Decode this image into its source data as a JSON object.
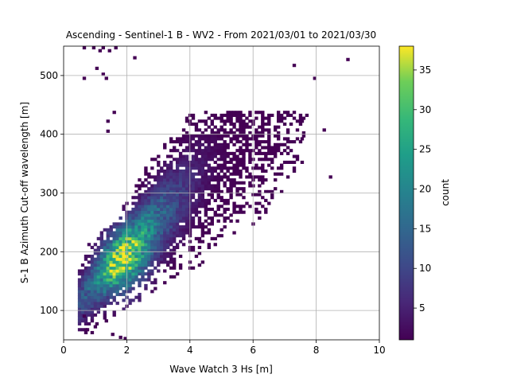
{
  "chart_data": {
    "type": "heatmap",
    "title": "Ascending - Sentinel-1 B - WV2 - From 2021/03/01 to 2021/03/30",
    "xlabel": "Wave Watch 3 Hs [m]",
    "ylabel": "S-1 B Azimuth Cut-off wavelength [m]",
    "xlim": [
      0,
      10
    ],
    "ylim": [
      50,
      550
    ],
    "xticks": [
      0,
      2,
      4,
      6,
      8,
      10
    ],
    "yticks": [
      100,
      200,
      300,
      400,
      500
    ],
    "grid": true,
    "colorbar": {
      "label": "count",
      "colormap": "viridis",
      "range": [
        1,
        38
      ],
      "ticks": [
        5,
        10,
        15,
        20,
        25,
        30,
        35
      ]
    },
    "distribution": {
      "description_of_cloud": "2D histogram of counts; dense core near Hs 1.9 m and cutoff 190 m, elongated along roughly 200 + 55*(Hs-2) m",
      "core_center": [
        1.9,
        185
      ],
      "peak_count": 38,
      "outliers": [
        [
          0.6,
          545
        ],
        [
          0.9,
          545
        ],
        [
          1.1,
          540
        ],
        [
          1.2,
          545
        ],
        [
          1.4,
          540
        ],
        [
          1.6,
          545
        ],
        [
          0.6,
          493
        ],
        [
          1.0,
          510
        ],
        [
          1.2,
          500
        ],
        [
          1.3,
          493
        ],
        [
          2.2,
          528
        ],
        [
          1.55,
          435
        ],
        [
          1.35,
          420
        ],
        [
          1.35,
          403
        ],
        [
          8.95,
          525
        ],
        [
          7.25,
          515
        ],
        [
          7.9,
          493
        ],
        [
          0.7,
          65
        ],
        [
          1.0,
          75
        ],
        [
          1.3,
          80
        ],
        [
          1.5,
          57
        ],
        [
          1.75,
          52
        ],
        [
          1.9,
          50
        ],
        [
          0.6,
          88
        ],
        [
          8.2,
          405
        ],
        [
          7.5,
          420
        ],
        [
          7.5,
          390
        ],
        [
          8.4,
          325
        ],
        [
          7.5,
          350
        ],
        [
          6.0,
          390
        ]
      ]
    }
  }
}
